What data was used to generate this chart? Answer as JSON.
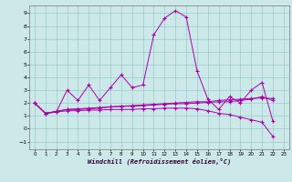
{
  "background_color": "#cce8e8",
  "grid_color": "#99cccc",
  "line_color": "#aa00aa",
  "xlim": [
    -0.5,
    23.5
  ],
  "ylim": [
    -1.6,
    9.6
  ],
  "xlabel": "Windchill (Refroidissement éolien,°C)",
  "xticks": [
    0,
    1,
    2,
    3,
    4,
    5,
    6,
    7,
    8,
    9,
    10,
    11,
    12,
    13,
    14,
    15,
    16,
    17,
    18,
    19,
    20,
    21,
    22,
    23
  ],
  "yticks": [
    -1,
    0,
    1,
    2,
    3,
    4,
    5,
    6,
    7,
    8,
    9
  ],
  "y1": [
    2.0,
    1.2,
    1.3,
    3.0,
    2.2,
    3.4,
    2.2,
    3.2,
    4.2,
    3.2,
    3.4,
    7.3,
    8.6,
    9.2,
    8.7,
    4.5,
    2.3,
    1.5,
    2.5,
    2.0,
    3.0,
    3.6,
    0.6,
    null
  ],
  "y2": [
    2.0,
    1.2,
    1.35,
    1.5,
    1.55,
    1.6,
    1.65,
    1.7,
    1.75,
    1.8,
    1.85,
    1.9,
    1.95,
    2.0,
    2.05,
    2.1,
    2.1,
    2.2,
    2.25,
    2.3,
    2.35,
    2.4,
    2.35,
    null
  ],
  "y3": [
    2.0,
    1.2,
    1.35,
    1.5,
    1.5,
    1.55,
    1.6,
    1.7,
    1.75,
    1.75,
    1.8,
    1.85,
    1.9,
    1.95,
    1.95,
    2.0,
    2.05,
    2.1,
    2.1,
    2.2,
    2.3,
    2.5,
    2.2,
    null
  ],
  "y4": [
    2.0,
    1.2,
    1.3,
    1.4,
    1.4,
    1.45,
    1.45,
    1.5,
    1.5,
    1.5,
    1.55,
    1.55,
    1.6,
    1.6,
    1.6,
    1.55,
    1.4,
    1.2,
    1.1,
    0.9,
    0.7,
    0.5,
    -0.6,
    null
  ]
}
